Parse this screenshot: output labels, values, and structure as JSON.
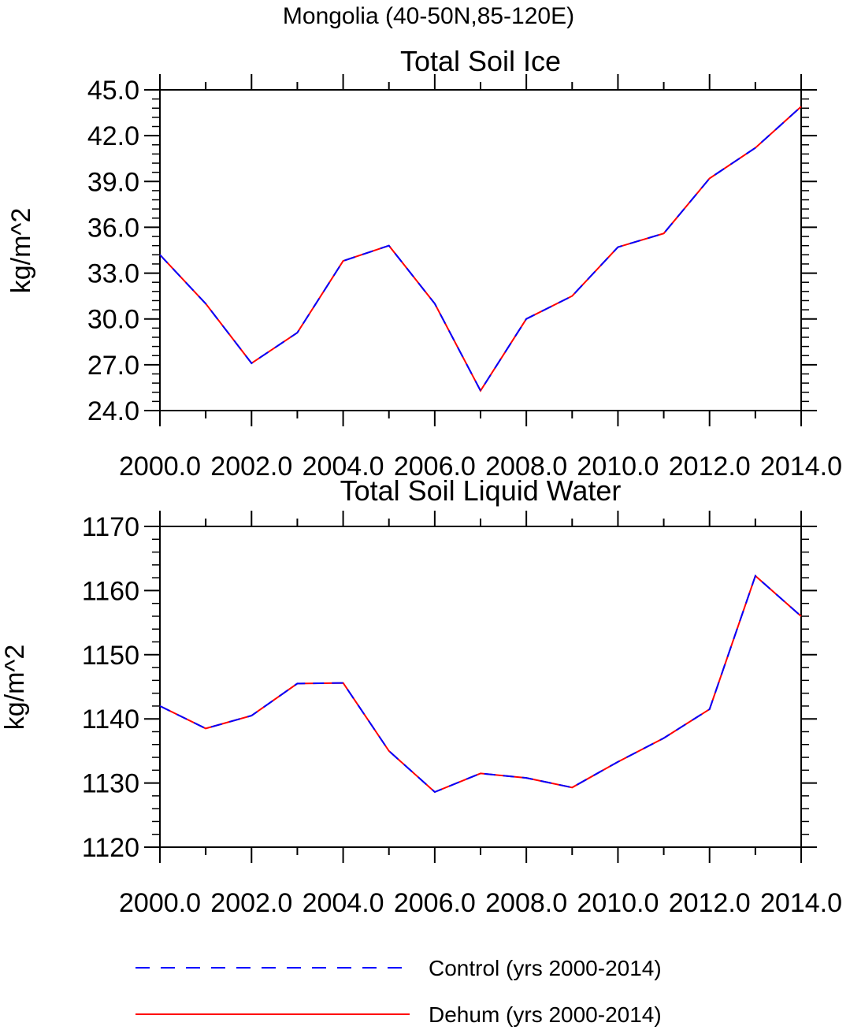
{
  "figure_title": "Mongolia (40-50N,85-120E)",
  "legend": {
    "placement": "bottom",
    "entries": [
      {
        "label": "Control (yrs 2000-2014)",
        "color": "#0000ff",
        "style": "dashed"
      },
      {
        "label": "Dehum (yrs 2000-2014)",
        "color": "#ff0000",
        "style": "solid"
      }
    ]
  },
  "chart_data": [
    {
      "type": "line",
      "title": "Total Soil Ice",
      "xlabel": "",
      "ylabel": "kg/m^2",
      "xlim": [
        2000,
        2014
      ],
      "ylim": [
        24,
        45
      ],
      "xticks": [
        2000,
        2002,
        2004,
        2006,
        2008,
        2010,
        2012,
        2014
      ],
      "xtick_labels": [
        "2000.0",
        "2002.0",
        "2004.0",
        "2006.0",
        "2008.0",
        "2010.0",
        "2012.0",
        "2014.0"
      ],
      "yticks": [
        24,
        27,
        30,
        33,
        36,
        39,
        42,
        45
      ],
      "ytick_labels": [
        "24.0",
        "27.0",
        "30.0",
        "33.0",
        "36.0",
        "39.0",
        "42.0",
        "45.0"
      ],
      "grid": false,
      "x": [
        2000,
        2001,
        2002,
        2003,
        2004,
        2005,
        2006,
        2007,
        2008,
        2009,
        2010,
        2011,
        2012,
        2013,
        2014
      ],
      "series": [
        {
          "name": "Control (yrs 2000-2014)",
          "color": "#0000ff",
          "style": "dashed",
          "values": [
            34.2,
            31.0,
            27.1,
            29.1,
            33.8,
            34.8,
            31.0,
            25.3,
            30.0,
            31.5,
            34.7,
            35.6,
            39.2,
            41.2,
            43.9
          ]
        },
        {
          "name": "Dehum (yrs 2000-2014)",
          "color": "#ff0000",
          "style": "solid",
          "values": [
            34.2,
            31.0,
            27.1,
            29.1,
            33.8,
            34.8,
            31.0,
            25.3,
            30.0,
            31.5,
            34.7,
            35.6,
            39.2,
            41.2,
            43.9
          ]
        }
      ]
    },
    {
      "type": "line",
      "title": "Total Soil Liquid Water",
      "xlabel": "",
      "ylabel": "kg/m^2",
      "xlim": [
        2000,
        2014
      ],
      "ylim": [
        1120,
        1170
      ],
      "xticks": [
        2000,
        2002,
        2004,
        2006,
        2008,
        2010,
        2012,
        2014
      ],
      "xtick_labels": [
        "2000.0",
        "2002.0",
        "2004.0",
        "2006.0",
        "2008.0",
        "2010.0",
        "2012.0",
        "2014.0"
      ],
      "yticks": [
        1120,
        1130,
        1140,
        1150,
        1160,
        1170
      ],
      "ytick_labels": [
        "1120",
        "1130",
        "1140",
        "1150",
        "1160",
        "1170"
      ],
      "grid": false,
      "x": [
        2000,
        2001,
        2002,
        2003,
        2004,
        2005,
        2006,
        2007,
        2008,
        2009,
        2010,
        2011,
        2012,
        2013,
        2014
      ],
      "series": [
        {
          "name": "Control (yrs 2000-2014)",
          "color": "#0000ff",
          "style": "dashed",
          "values": [
            1142.0,
            1138.5,
            1140.5,
            1145.5,
            1145.6,
            1135.0,
            1128.6,
            1131.5,
            1130.8,
            1129.3,
            1133.3,
            1137.0,
            1141.5,
            1162.3,
            1156.0
          ]
        },
        {
          "name": "Dehum (yrs 2000-2014)",
          "color": "#ff0000",
          "style": "solid",
          "values": [
            1142.0,
            1138.5,
            1140.5,
            1145.5,
            1145.6,
            1135.0,
            1128.6,
            1131.5,
            1130.8,
            1129.3,
            1133.3,
            1137.0,
            1141.5,
            1162.3,
            1156.0
          ]
        }
      ]
    }
  ]
}
